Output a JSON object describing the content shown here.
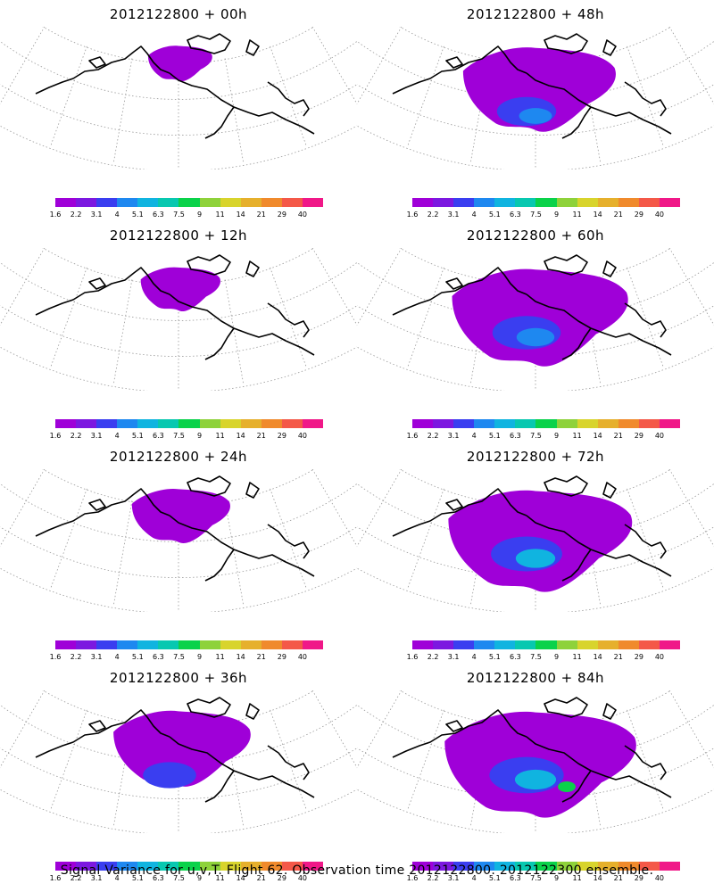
{
  "colorscale": {
    "ticks": [
      "1.6",
      "2.2",
      "3.1",
      "4",
      "5.1",
      "6.3",
      "7.5",
      "9",
      "11",
      "14",
      "21",
      "29",
      "40"
    ],
    "colors": [
      "#9f00d8",
      "#7c18e0",
      "#3a3ef0",
      "#1e88f0",
      "#10b4e0",
      "#08c8b0",
      "#0ad24a",
      "#8ed23a",
      "#d8d42c",
      "#e6b02c",
      "#f08a2c",
      "#f45848",
      "#f01888"
    ]
  },
  "panels": [
    {
      "title": "2012122800 + 00h",
      "coverage": 0.08,
      "intensity": 0.1
    },
    {
      "title": "2012122800 + 48h",
      "coverage": 0.65,
      "intensity": 0.35
    },
    {
      "title": "2012122800 + 12h",
      "coverage": 0.18,
      "intensity": 0.12
    },
    {
      "title": "2012122800 + 60h",
      "coverage": 0.8,
      "intensity": 0.4
    },
    {
      "title": "2012122800 + 24h",
      "coverage": 0.3,
      "intensity": 0.2
    },
    {
      "title": "2012122800 + 72h",
      "coverage": 0.85,
      "intensity": 0.45
    },
    {
      "title": "2012122800 + 36h",
      "coverage": 0.55,
      "intensity": 0.28
    },
    {
      "title": "2012122800 + 84h",
      "coverage": 0.9,
      "intensity": 0.55
    }
  ],
  "caption": "Signal Variance for u,v,T. Flight 62. Observation time 2012122800. 2012122300 ensemble."
}
